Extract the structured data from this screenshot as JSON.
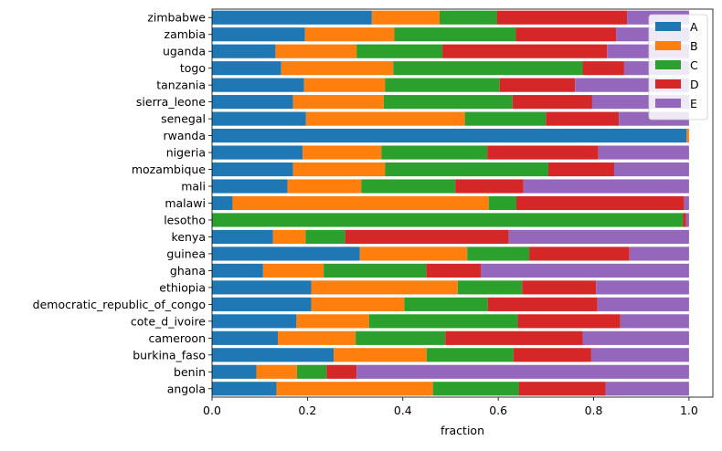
{
  "chart_data": {
    "type": "bar",
    "orientation": "horizontal",
    "stacked": true,
    "xlabel": "fraction",
    "ylabel": "",
    "title": "",
    "xlim": [
      0,
      1.05
    ],
    "xticks": [
      "0.0",
      "0.2",
      "0.4",
      "0.6",
      "0.8",
      "1.0"
    ],
    "grid": false,
    "legend": {
      "placement": "top-right"
    },
    "colors": {
      "A": "#1f77b4",
      "B": "#ff7f0e",
      "C": "#2ca02c",
      "D": "#d62728",
      "E": "#9467bd"
    },
    "categories": [
      "zimbabwe",
      "zambia",
      "uganda",
      "togo",
      "tanzania",
      "sierra_leone",
      "senegal",
      "rwanda",
      "nigeria",
      "mozambique",
      "mali",
      "malawi",
      "lesotho",
      "kenya",
      "guinea",
      "ghana",
      "ethiopia",
      "democratic_republic_of_congo",
      "cote_d_ivoire",
      "cameroon",
      "burkina_faso",
      "benin",
      "angola"
    ],
    "series": [
      {
        "name": "A",
        "values": [
          0.335,
          0.195,
          0.133,
          0.145,
          0.193,
          0.17,
          0.197,
          0.995,
          0.19,
          0.17,
          0.158,
          0.043,
          0.0,
          0.128,
          0.31,
          0.107,
          0.208,
          0.208,
          0.177,
          0.138,
          0.255,
          0.093,
          0.135
        ]
      },
      {
        "name": "B",
        "values": [
          0.142,
          0.187,
          0.17,
          0.235,
          0.17,
          0.19,
          0.333,
          0.005,
          0.165,
          0.193,
          0.155,
          0.537,
          0.0,
          0.068,
          0.225,
          0.127,
          0.307,
          0.195,
          0.152,
          0.163,
          0.195,
          0.085,
          0.328
        ]
      },
      {
        "name": "C",
        "values": [
          0.12,
          0.255,
          0.18,
          0.397,
          0.24,
          0.27,
          0.17,
          0.0,
          0.222,
          0.342,
          0.197,
          0.058,
          0.987,
          0.083,
          0.13,
          0.215,
          0.135,
          0.175,
          0.312,
          0.188,
          0.182,
          0.062,
          0.18
        ]
      },
      {
        "name": "D",
        "values": [
          0.273,
          0.21,
          0.345,
          0.087,
          0.158,
          0.167,
          0.153,
          0.0,
          0.233,
          0.138,
          0.143,
          0.352,
          0.007,
          0.343,
          0.21,
          0.115,
          0.155,
          0.23,
          0.215,
          0.288,
          0.163,
          0.063,
          0.182
        ]
      },
      {
        "name": "E",
        "values": [
          0.13,
          0.153,
          0.172,
          0.136,
          0.239,
          0.203,
          0.147,
          0.0,
          0.19,
          0.157,
          0.347,
          0.01,
          0.006,
          0.378,
          0.125,
          0.436,
          0.195,
          0.192,
          0.144,
          0.223,
          0.205,
          0.697,
          0.175
        ]
      }
    ]
  }
}
